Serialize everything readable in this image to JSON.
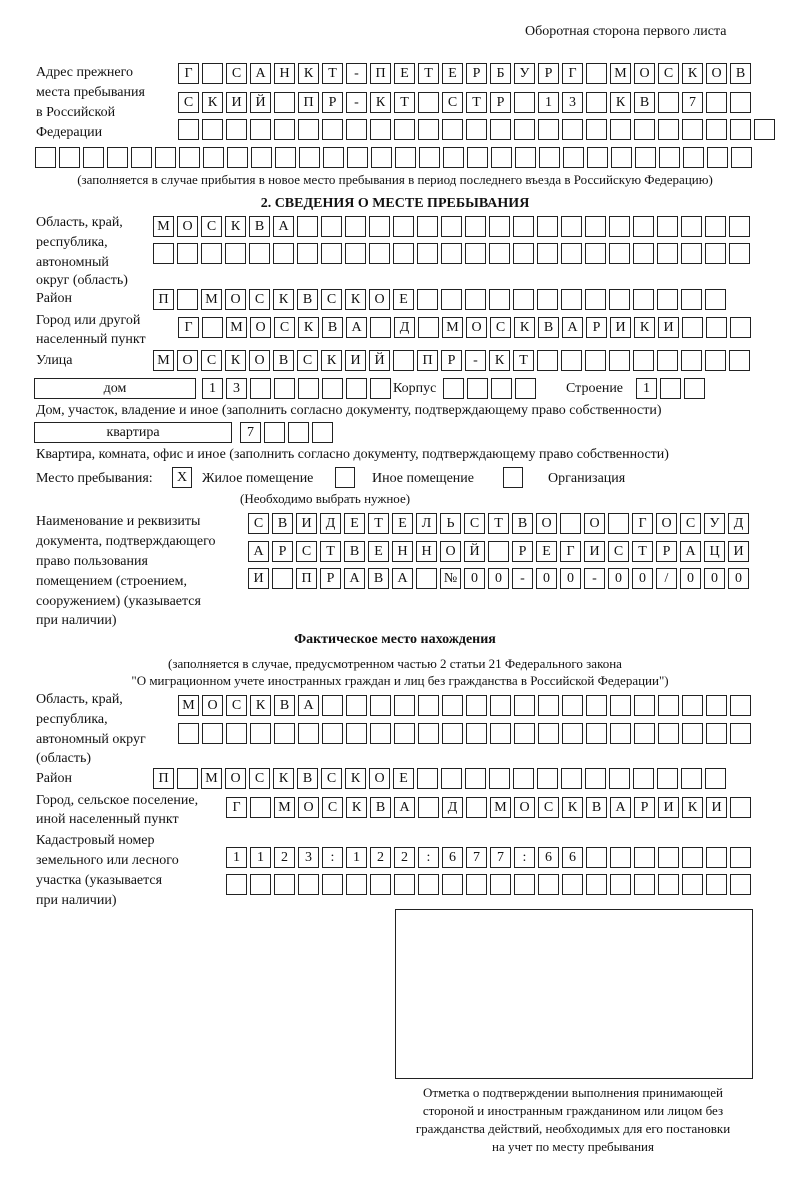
{
  "header": "Оборотная сторона первого листа",
  "prev_address": {
    "label": [
      "Адрес прежнего",
      "места пребывания",
      "в Российской",
      "Федерации"
    ],
    "rows": [
      [
        "Г",
        " ",
        "С",
        "А",
        "Н",
        "К",
        "Т",
        "-",
        "П",
        "Е",
        "Т",
        "Е",
        "Р",
        "Б",
        "У",
        "Р",
        "Г",
        " ",
        "М",
        "О",
        "С",
        "К",
        "О",
        "В"
      ],
      [
        "С",
        "К",
        "И",
        "Й",
        " ",
        "П",
        "Р",
        "-",
        "К",
        "Т",
        " ",
        "С",
        "Т",
        "Р",
        " ",
        "1",
        "3",
        " ",
        "К",
        "В",
        " ",
        "7",
        " ",
        " "
      ],
      [
        " ",
        " ",
        " ",
        " ",
        " ",
        " ",
        " ",
        " ",
        " ",
        " ",
        " ",
        " ",
        " ",
        " ",
        " ",
        " ",
        " ",
        " ",
        " ",
        " ",
        " ",
        " ",
        " ",
        " ",
        " "
      ],
      [
        " ",
        " ",
        " ",
        " ",
        " ",
        " ",
        " ",
        " ",
        " ",
        " ",
        " ",
        " ",
        " ",
        " ",
        " ",
        " ",
        " ",
        " ",
        " ",
        " ",
        " ",
        " ",
        " ",
        " ",
        " ",
        " ",
        " ",
        " ",
        " ",
        " "
      ]
    ],
    "note": "(заполняется в случае прибытия в новое место пребывания в период последнего въезда в Российскую Федерацию)"
  },
  "section2": {
    "title": "2. СВЕДЕНИЯ О МЕСТЕ ПРЕБЫВАНИЯ",
    "region_label": [
      "Область, край,",
      "республика,",
      "автономный",
      "округ (область)"
    ],
    "region_rows": [
      [
        "М",
        "О",
        "С",
        "К",
        "В",
        "А",
        " ",
        " ",
        " ",
        " ",
        " ",
        " ",
        " ",
        " ",
        " ",
        " ",
        " ",
        " ",
        " ",
        " ",
        " ",
        " ",
        " ",
        " ",
        " "
      ],
      [
        " ",
        " ",
        " ",
        " ",
        " ",
        " ",
        " ",
        " ",
        " ",
        " ",
        " ",
        " ",
        " ",
        " ",
        " ",
        " ",
        " ",
        " ",
        " ",
        " ",
        " ",
        " ",
        " ",
        " ",
        " "
      ]
    ],
    "district_label": "Район",
    "district": [
      "П",
      " ",
      "М",
      "О",
      "С",
      "К",
      "В",
      "С",
      "К",
      "О",
      "Е",
      " ",
      " ",
      " ",
      " ",
      " ",
      " ",
      " ",
      " ",
      " ",
      " ",
      " ",
      " ",
      " "
    ],
    "city_label": [
      "Город или другой",
      "населенный пункт"
    ],
    "city": [
      "Г",
      " ",
      "М",
      "О",
      "С",
      "К",
      "В",
      "А",
      " ",
      "Д",
      " ",
      "М",
      "О",
      "С",
      "К",
      "В",
      "А",
      "Р",
      "И",
      "К",
      "И",
      " ",
      " ",
      " "
    ],
    "street_label": "Улица",
    "street": [
      "М",
      "О",
      "С",
      "К",
      "О",
      "В",
      "С",
      "К",
      "И",
      "Й",
      " ",
      "П",
      "Р",
      "-",
      "К",
      "Т",
      " ",
      " ",
      " ",
      " ",
      " ",
      " ",
      " ",
      " ",
      " "
    ],
    "house_type": "дом",
    "house": [
      "1",
      "3",
      " ",
      " ",
      " ",
      " ",
      " ",
      " "
    ],
    "korpus_label": "Корпус",
    "korpus": [
      " ",
      " ",
      " ",
      " "
    ],
    "building_label": "Строение",
    "building": [
      "1",
      " ",
      " "
    ],
    "house_note": "Дом, участок, владение и иное (заполнить согласно документу, подтверждающему право собственности)",
    "flat_type": "квартира",
    "flat": [
      "7",
      " ",
      " ",
      " "
    ],
    "flat_note": "Квартира, комната, офис и иное (заполнить согласно документу, подтверждающему право собственности)",
    "place_label": "Место пребывания:",
    "options": [
      {
        "mark": "X",
        "label": "Жилое помещение"
      },
      {
        "mark": "",
        "label": "Иное помещение"
      },
      {
        "mark": "",
        "label": "Организация"
      }
    ],
    "choose_note": "(Необходимо выбрать нужное)",
    "doc_label": [
      "Наименование и реквизиты",
      "документа, подтверждающего",
      "право пользования",
      "помещением (строением,",
      "сооружением) (указывается",
      "при наличии)"
    ],
    "doc_rows": [
      [
        "С",
        "В",
        "И",
        "Д",
        "Е",
        "Т",
        "Е",
        "Л",
        "Ь",
        "С",
        "Т",
        "В",
        "О",
        " ",
        "О",
        " ",
        "Г",
        "О",
        "С",
        "У",
        "Д"
      ],
      [
        "А",
        "Р",
        "С",
        "Т",
        "В",
        "Е",
        "Н",
        "Н",
        "О",
        "Й",
        " ",
        "Р",
        "Е",
        "Г",
        "И",
        "С",
        "Т",
        "Р",
        "А",
        "Ц",
        "И"
      ],
      [
        "И",
        " ",
        "П",
        "Р",
        "А",
        "В",
        "А",
        " ",
        "№",
        "0",
        "0",
        "-",
        "0",
        "0",
        "-",
        "0",
        "0",
        "/",
        "0",
        "0",
        "0"
      ]
    ]
  },
  "actual": {
    "title": "Фактическое место нахождения",
    "note": [
      "(заполняется в случае, предусмотренном частью 2 статьи 21 Федерального закона",
      "\"О миграционном учете иностранных граждан и лиц без гражданства в Российской Федерации\")"
    ],
    "region_label": [
      "Область, край,",
      "республика,",
      "автономный округ",
      "(область)"
    ],
    "region_rows": [
      [
        "М",
        "О",
        "С",
        "К",
        "В",
        "А",
        " ",
        " ",
        " ",
        " ",
        " ",
        " ",
        " ",
        " ",
        " ",
        " ",
        " ",
        " ",
        " ",
        " ",
        " ",
        " ",
        " ",
        " "
      ],
      [
        " ",
        " ",
        " ",
        " ",
        " ",
        " ",
        " ",
        " ",
        " ",
        " ",
        " ",
        " ",
        " ",
        " ",
        " ",
        " ",
        " ",
        " ",
        " ",
        " ",
        " ",
        " ",
        " ",
        " "
      ]
    ],
    "district_label": "Район",
    "district": [
      "П",
      " ",
      "М",
      "О",
      "С",
      "К",
      "В",
      "С",
      "К",
      "О",
      "Е",
      " ",
      " ",
      " ",
      " ",
      " ",
      " ",
      " ",
      " ",
      " ",
      " ",
      " ",
      " ",
      " "
    ],
    "city_label": [
      "Город, сельское поселение,",
      "иной населенный пункт"
    ],
    "city": [
      "Г",
      " ",
      "М",
      "О",
      "С",
      "К",
      "В",
      "А",
      " ",
      "Д",
      " ",
      "М",
      "О",
      "С",
      "К",
      "В",
      "А",
      "Р",
      "И",
      "К",
      "И",
      " "
    ],
    "cadastral_label": [
      "Кадастровый номер",
      "земельного или лесного",
      "участка (указывается",
      "при наличии)"
    ],
    "cadastral_rows": [
      [
        "1",
        "1",
        "2",
        "3",
        ":",
        "1",
        "2",
        "2",
        ":",
        "6",
        "7",
        "7",
        ":",
        "6",
        "6",
        " ",
        " ",
        " ",
        " ",
        " ",
        " ",
        " "
      ],
      [
        " ",
        " ",
        " ",
        " ",
        " ",
        " ",
        " ",
        " ",
        " ",
        " ",
        " ",
        " ",
        " ",
        " ",
        " ",
        " ",
        " ",
        " ",
        " ",
        " ",
        " ",
        " "
      ]
    ]
  },
  "stamp_caption": [
    "Отметка о подтверждении выполнения принимающей",
    "стороной и иностранным гражданином или лицом без",
    "гражданства действий, необходимых для его постановки",
    "на учет по месту пребывания"
  ]
}
